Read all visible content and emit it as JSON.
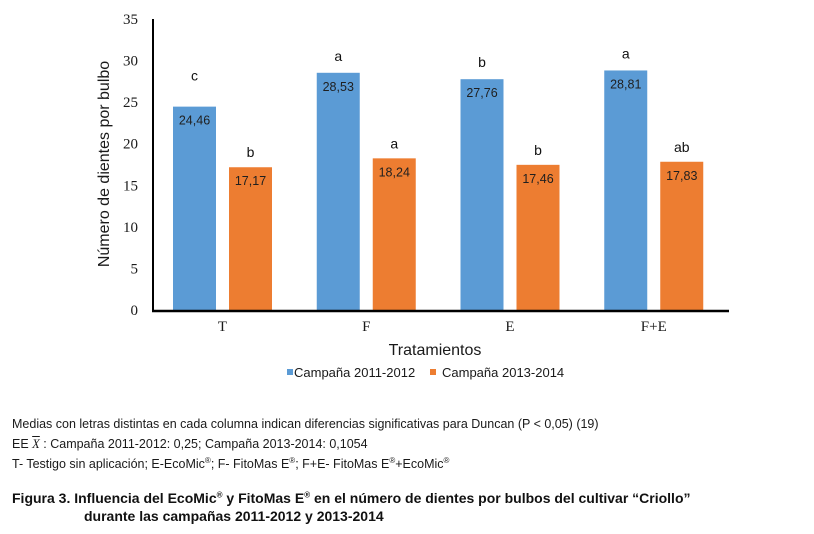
{
  "chart_data": {
    "type": "bar",
    "title": "",
    "xlabel": "Tratamientos",
    "ylabel": "Número de dientes por  bulbo",
    "ylim": [
      0,
      35
    ],
    "yticks": [
      0,
      5,
      10,
      15,
      20,
      25,
      30,
      35
    ],
    "grid": false,
    "legend_position": "bottom",
    "categories": [
      "T",
      "F",
      "E",
      "F+E"
    ],
    "series": [
      {
        "name": "Campaña 2011-2012",
        "color": "#5B9BD5",
        "values": [
          24.46,
          28.53,
          27.76,
          28.81
        ],
        "labels": [
          "24,46",
          "28,53",
          "27,76",
          "28,81"
        ],
        "letters": [
          "c",
          "a",
          "b",
          "a"
        ]
      },
      {
        "name": "Campaña 2013-2014",
        "color": "#ED7D31",
        "values": [
          17.17,
          18.24,
          17.46,
          17.83
        ],
        "labels": [
          "17,17",
          "18,24",
          "17,46",
          "17,83"
        ],
        "letters": [
          "b",
          "a",
          "b",
          "ab"
        ]
      }
    ]
  },
  "notes": {
    "line1": "Medias con letras distintas en cada columna indican diferencias significativas para Duncan (P < 0,05) (19)",
    "line2_prefix": "EE ",
    "line2_symbol": "X",
    "line2_rest": " : Campaña 2011-2012: 0,25; Campaña 2013-2014: 0,1054",
    "line3_a": "T- Testigo sin aplicación; E-EcoMic",
    "line3_b": "; F- FitoMas E",
    "line3_c": "; F+E- FitoMas E",
    "line3_d": "+EcoMic",
    "reg": "®"
  },
  "caption": {
    "part1": "Figura 3. Influencia del EcoMic",
    "part2": " y FitoMas E",
    "part3": " en el número de dientes por bulbos del cultivar “Criollo”",
    "line2": "durante las campañas 2011-2012 y 2013-2014",
    "reg": "®"
  }
}
